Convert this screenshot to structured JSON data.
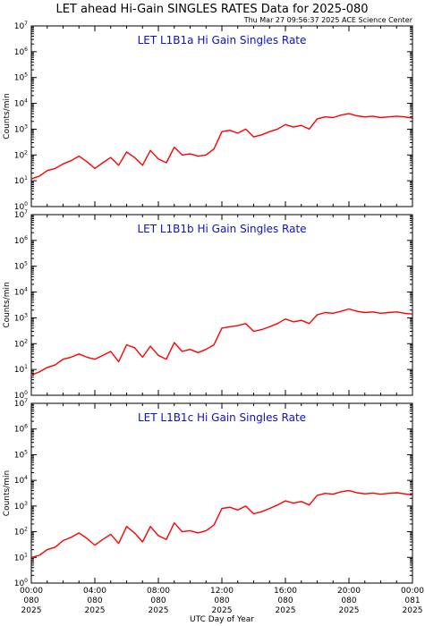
{
  "header": {
    "title": "LET ahead Hi-Gain SINGLES RATES Data for 2025-080",
    "timestamp": "Thu Mar 27 09:56:37 2025 ACE Science Center"
  },
  "xaxis": {
    "label": "UTC Day of Year",
    "ticks": [
      {
        "time": "00:00",
        "day": "080",
        "year": "2025"
      },
      {
        "time": "04:00",
        "day": "080",
        "year": "2025"
      },
      {
        "time": "08:00",
        "day": "080",
        "year": "2025"
      },
      {
        "time": "12:00",
        "day": "080",
        "year": "2025"
      },
      {
        "time": "16:00",
        "day": "080",
        "year": "2025"
      },
      {
        "time": "20:00",
        "day": "080",
        "year": "2025"
      },
      {
        "time": "00:00",
        "day": "081",
        "year": "2025"
      }
    ]
  },
  "colors": {
    "series": "#ff0000",
    "panel_title": "#1010c8",
    "axis": "#000000"
  },
  "chart_data": [
    {
      "type": "line",
      "title": "LET L1B1a Hi Gain Singles Rate",
      "ylabel": "Counts/min",
      "yscale": "log",
      "ylim": [
        1,
        10000000
      ],
      "xlim_hours": [
        0,
        24
      ],
      "x_hours": [
        0,
        0.5,
        1,
        1.5,
        2,
        2.5,
        3,
        3.5,
        4,
        4.5,
        5,
        5.5,
        6,
        6.5,
        7,
        7.5,
        8,
        8.5,
        9,
        9.5,
        10,
        10.5,
        11,
        11.5,
        12,
        12.5,
        13,
        13.5,
        14,
        14.5,
        15,
        15.5,
        16,
        16.5,
        17,
        17.5,
        18,
        18.5,
        19,
        19.5,
        20,
        20.5,
        21,
        21.5,
        22,
        22.5,
        23,
        23.5,
        24
      ],
      "series": [
        {
          "values": [
            12,
            15,
            25,
            30,
            45,
            60,
            90,
            55,
            30,
            50,
            80,
            40,
            130,
            80,
            40,
            150,
            70,
            50,
            200,
            100,
            110,
            90,
            100,
            170,
            800,
            900,
            700,
            1000,
            500,
            600,
            800,
            1000,
            1500,
            1200,
            1400,
            1000,
            2500,
            3000,
            2800,
            3500,
            4000,
            3300,
            3000,
            3200,
            2800,
            3000,
            3200,
            3000,
            2700
          ]
        }
      ]
    },
    {
      "type": "line",
      "title": "LET L1B1b Hi Gain Singles Rate",
      "ylabel": "Counts/min",
      "yscale": "log",
      "ylim": [
        1,
        10000000
      ],
      "xlim_hours": [
        0,
        24
      ],
      "x_hours": [
        0,
        0.5,
        1,
        1.5,
        2,
        2.5,
        3,
        3.5,
        4,
        4.5,
        5,
        5.5,
        6,
        6.5,
        7,
        7.5,
        8,
        8.5,
        9,
        9.5,
        10,
        10.5,
        11,
        11.5,
        12,
        12.5,
        13,
        13.5,
        14,
        14.5,
        15,
        15.5,
        16,
        16.5,
        17,
        17.5,
        18,
        18.5,
        19,
        19.5,
        20,
        20.5,
        21,
        21.5,
        22,
        22.5,
        23,
        23.5,
        24
      ],
      "series": [
        {
          "values": [
            6,
            8,
            12,
            15,
            25,
            30,
            40,
            30,
            25,
            35,
            50,
            20,
            90,
            70,
            30,
            80,
            35,
            25,
            110,
            50,
            60,
            45,
            60,
            90,
            400,
            450,
            500,
            600,
            300,
            350,
            450,
            600,
            900,
            700,
            800,
            600,
            1300,
            1600,
            1500,
            1800,
            2200,
            1800,
            1600,
            1700,
            1500,
            1600,
            1700,
            1500,
            1400
          ]
        }
      ]
    },
    {
      "type": "line",
      "title": "LET L1B1c Hi Gain Singles Rate",
      "ylabel": "Counts/min",
      "yscale": "log",
      "ylim": [
        1,
        10000000
      ],
      "xlim_hours": [
        0,
        24
      ],
      "x_hours": [
        0,
        0.5,
        1,
        1.5,
        2,
        2.5,
        3,
        3.5,
        4,
        4.5,
        5,
        5.5,
        6,
        6.5,
        7,
        7.5,
        8,
        8.5,
        9,
        9.5,
        10,
        10.5,
        11,
        11.5,
        12,
        12.5,
        13,
        13.5,
        14,
        14.5,
        15,
        15.5,
        16,
        16.5,
        17,
        17.5,
        18,
        18.5,
        19,
        19.5,
        20,
        20.5,
        21,
        21.5,
        22,
        22.5,
        23,
        23.5,
        24
      ],
      "series": [
        {
          "values": [
            10,
            12,
            20,
            25,
            45,
            60,
            90,
            55,
            30,
            50,
            80,
            35,
            160,
            90,
            40,
            160,
            70,
            50,
            220,
            100,
            110,
            90,
            110,
            180,
            800,
            900,
            700,
            1000,
            500,
            600,
            800,
            1100,
            1600,
            1300,
            1500,
            1100,
            2600,
            3100,
            2900,
            3600,
            4000,
            3300,
            3000,
            3200,
            2900,
            3100,
            3300,
            3000,
            2700
          ]
        }
      ]
    }
  ]
}
